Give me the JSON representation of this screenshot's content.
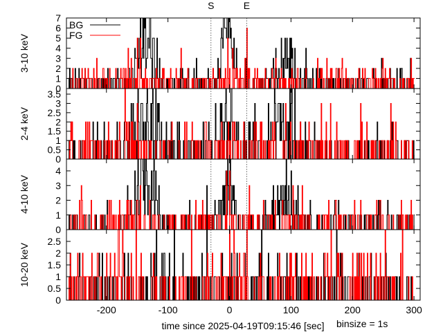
{
  "chart_data": {
    "type": "line",
    "x_axis": {
      "label": "time since 2025-04-19T09:15:46 [sec]",
      "range": [
        -265,
        310
      ],
      "ticks": [
        -200,
        -100,
        0,
        100,
        200,
        300
      ],
      "tick_labels": [
        "-200",
        "-100",
        "0",
        "100",
        "200",
        "300"
      ]
    },
    "binsize_label": "binsize = 1s",
    "markers": [
      {
        "label": "S",
        "x": -30
      },
      {
        "label": "E",
        "x": 28
      }
    ],
    "legend": {
      "placement": "top-left",
      "entries": [
        {
          "name": "BG",
          "color": "#000000"
        },
        {
          "name": "FG",
          "color": "#ff0000"
        }
      ]
    },
    "panels": [
      {
        "ylabel": "3-10 keV",
        "ylim": [
          0,
          7
        ],
        "yticks": [
          0,
          1,
          2,
          3,
          4,
          5,
          6,
          7
        ],
        "ytick_labels": [
          "0",
          "1",
          "2",
          "3",
          "4",
          "5",
          "6",
          "7"
        ],
        "bursts": [
          {
            "center": -137,
            "width": 18,
            "amp": 4.2,
            "color": "#000000"
          },
          {
            "center": -5,
            "width": 12,
            "amp": 5.0,
            "color": "#000000"
          },
          {
            "center": 90,
            "width": 20,
            "amp": 2.5,
            "color": "#000000"
          }
        ],
        "bg_rate": 0.45,
        "fg_rate": 0.55,
        "fg_spikes": [
          [
            -150,
            5
          ],
          [
            -145,
            5
          ],
          [
            -3,
            5
          ],
          [
            5,
            4
          ],
          [
            28,
            6
          ],
          [
            -185,
            2
          ],
          [
            -160,
            3
          ]
        ]
      },
      {
        "ylabel": "2-4 keV",
        "ylim": [
          0,
          3.8
        ],
        "yticks": [
          0,
          0.5,
          1,
          1.5,
          2,
          2.5,
          3,
          3.5
        ],
        "ytick_labels": [
          "0",
          "0.5",
          "1",
          "1.5",
          "2",
          "2.5",
          "3",
          "3.5"
        ],
        "bursts": [
          {
            "center": -135,
            "width": 18,
            "amp": 2.0,
            "color": "#000000"
          },
          {
            "center": -5,
            "width": 12,
            "amp": 2.0,
            "color": "#000000"
          },
          {
            "center": 85,
            "width": 20,
            "amp": 1.6,
            "color": "#000000"
          }
        ],
        "bg_rate": 0.3,
        "fg_rate": 0.4,
        "fg_spikes": [
          [
            -170,
            4
          ],
          [
            -150,
            3
          ],
          [
            -160,
            2
          ],
          [
            -2,
            2
          ],
          [
            8,
            2
          ]
        ]
      },
      {
        "ylabel": "4-10 keV",
        "ylim": [
          0,
          4.8
        ],
        "yticks": [
          0,
          1,
          2,
          3,
          4
        ],
        "ytick_labels": [
          "0",
          "1",
          "2",
          "3",
          "4"
        ],
        "bursts": [
          {
            "center": -137,
            "width": 18,
            "amp": 3.3,
            "color": "#000000"
          },
          {
            "center": -2,
            "width": 12,
            "amp": 3.3,
            "color": "#000000"
          },
          {
            "center": 90,
            "width": 20,
            "amp": 2.0,
            "color": "#000000"
          }
        ],
        "bg_rate": 0.3,
        "fg_rate": 0.4,
        "fg_spikes": [
          [
            -145,
            3
          ],
          [
            -5,
            4
          ],
          [
            0,
            4
          ],
          [
            -160,
            2
          ]
        ]
      },
      {
        "ylabel": "10-20 keV",
        "ylim": [
          0,
          3
        ],
        "yticks": [
          0,
          0.5,
          1,
          1.5,
          2,
          2.5
        ],
        "ytick_labels": [
          "0",
          "0.5",
          "1",
          "1.5",
          "2",
          "2.5"
        ],
        "bursts": [],
        "bg_rate": 0.35,
        "fg_rate": 0.55,
        "fg_spikes": [
          [
            -180,
            3
          ],
          [
            28,
            3
          ],
          [
            -160,
            2
          ],
          [
            100,
            2
          ],
          [
            200,
            2
          ],
          [
            245,
            2
          ]
        ]
      }
    ]
  }
}
